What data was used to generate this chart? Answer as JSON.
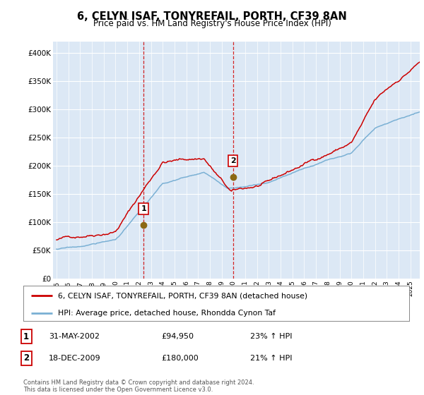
{
  "title": "6, CELYN ISAF, TONYREFAIL, PORTH, CF39 8AN",
  "subtitle": "Price paid vs. HM Land Registry's House Price Index (HPI)",
  "ylim": [
    0,
    420000
  ],
  "yticks": [
    0,
    50000,
    100000,
    150000,
    200000,
    250000,
    300000,
    350000,
    400000
  ],
  "ytick_labels": [
    "£0",
    "£50K",
    "£100K",
    "£150K",
    "£200K",
    "£250K",
    "£300K",
    "£350K",
    "£400K"
  ],
  "sale1_year": 2002.375,
  "sale1_price": 94950,
  "sale2_year": 2009.958,
  "sale2_price": 180000,
  "legend_line1": "6, CELYN ISAF, TONYREFAIL, PORTH, CF39 8AN (detached house)",
  "legend_line2": "HPI: Average price, detached house, Rhondda Cynon Taf",
  "table_row1": [
    "1",
    "31-MAY-2002",
    "£94,950",
    "23% ↑ HPI"
  ],
  "table_row2": [
    "2",
    "18-DEC-2009",
    "£180,000",
    "21% ↑ HPI"
  ],
  "footer": "Contains HM Land Registry data © Crown copyright and database right 2024.\nThis data is licensed under the Open Government Licence v3.0.",
  "red_color": "#cc0000",
  "blue_color": "#7ab0d4",
  "bg_color": "#dce8f5",
  "sale_marker_color": "#8B6914",
  "grid_color": "#ffffff",
  "xlim_left": 1994.7,
  "xlim_right": 2025.8
}
